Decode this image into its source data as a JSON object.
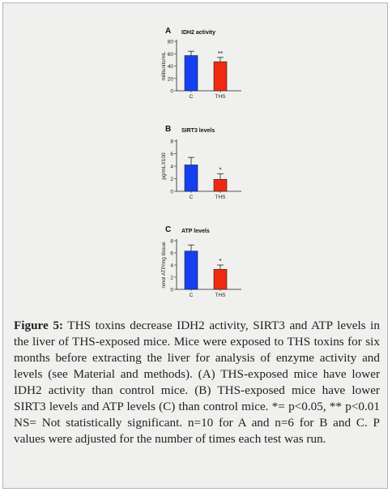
{
  "figure": {
    "caption_label": "Figure 5:",
    "caption_text": "THS toxins decrease IDH2 activity, SIRT3 and ATP levels in the liver of THS-exposed mice. Mice were exposed to THS toxins for six months before extracting the liver for analysis of enzyme activity and levels (see Material and methods). (A) THS-exposed mice have lower IDH2 activity than control mice. (B) THS-exposed mice have lower SIRT3 levels and ATP levels (C) than control mice. *= p<0.05, ** p<0.01 NS= Not statistically significant. n=10 for A and n=6 for B and C. P values were adjusted for the number of times each test was run."
  },
  "colors": {
    "control": "#1540f0",
    "ths": "#ef2a10",
    "frame_bg": "#f0f0ef"
  },
  "chart_data": [
    {
      "panel": "A",
      "type": "bar",
      "title": "IDH2 activity",
      "ylabel": "milliunits/mL",
      "categories": [
        "C",
        "THS"
      ],
      "values": [
        57,
        47
      ],
      "errors": [
        7,
        7
      ],
      "significance": [
        "",
        "**"
      ],
      "ylim": [
        0,
        80
      ],
      "yticks": [
        "0",
        "20",
        "40",
        "60",
        "80"
      ],
      "grid": false
    },
    {
      "panel": "B",
      "type": "bar",
      "title": "SIRT3 levels",
      "ylabel": "pg/mLX100",
      "categories": [
        "C",
        "THS"
      ],
      "values": [
        4.2,
        1.9
      ],
      "errors": [
        1.2,
        0.9
      ],
      "significance": [
        "",
        "*"
      ],
      "ylim": [
        0,
        8
      ],
      "yticks": [
        "0",
        "2",
        "4",
        "6",
        "8"
      ],
      "grid": false
    },
    {
      "panel": "C",
      "type": "bar",
      "title": "ATP levels",
      "ylabel": "nmol ATP/mg tissue",
      "categories": [
        "C",
        "THS"
      ],
      "values": [
        6.3,
        3.3
      ],
      "errors": [
        1.0,
        0.7
      ],
      "significance": [
        "",
        "*"
      ],
      "ylim": [
        0,
        8
      ],
      "yticks": [
        "0",
        "2",
        "4",
        "6",
        "8"
      ],
      "grid": false
    }
  ]
}
